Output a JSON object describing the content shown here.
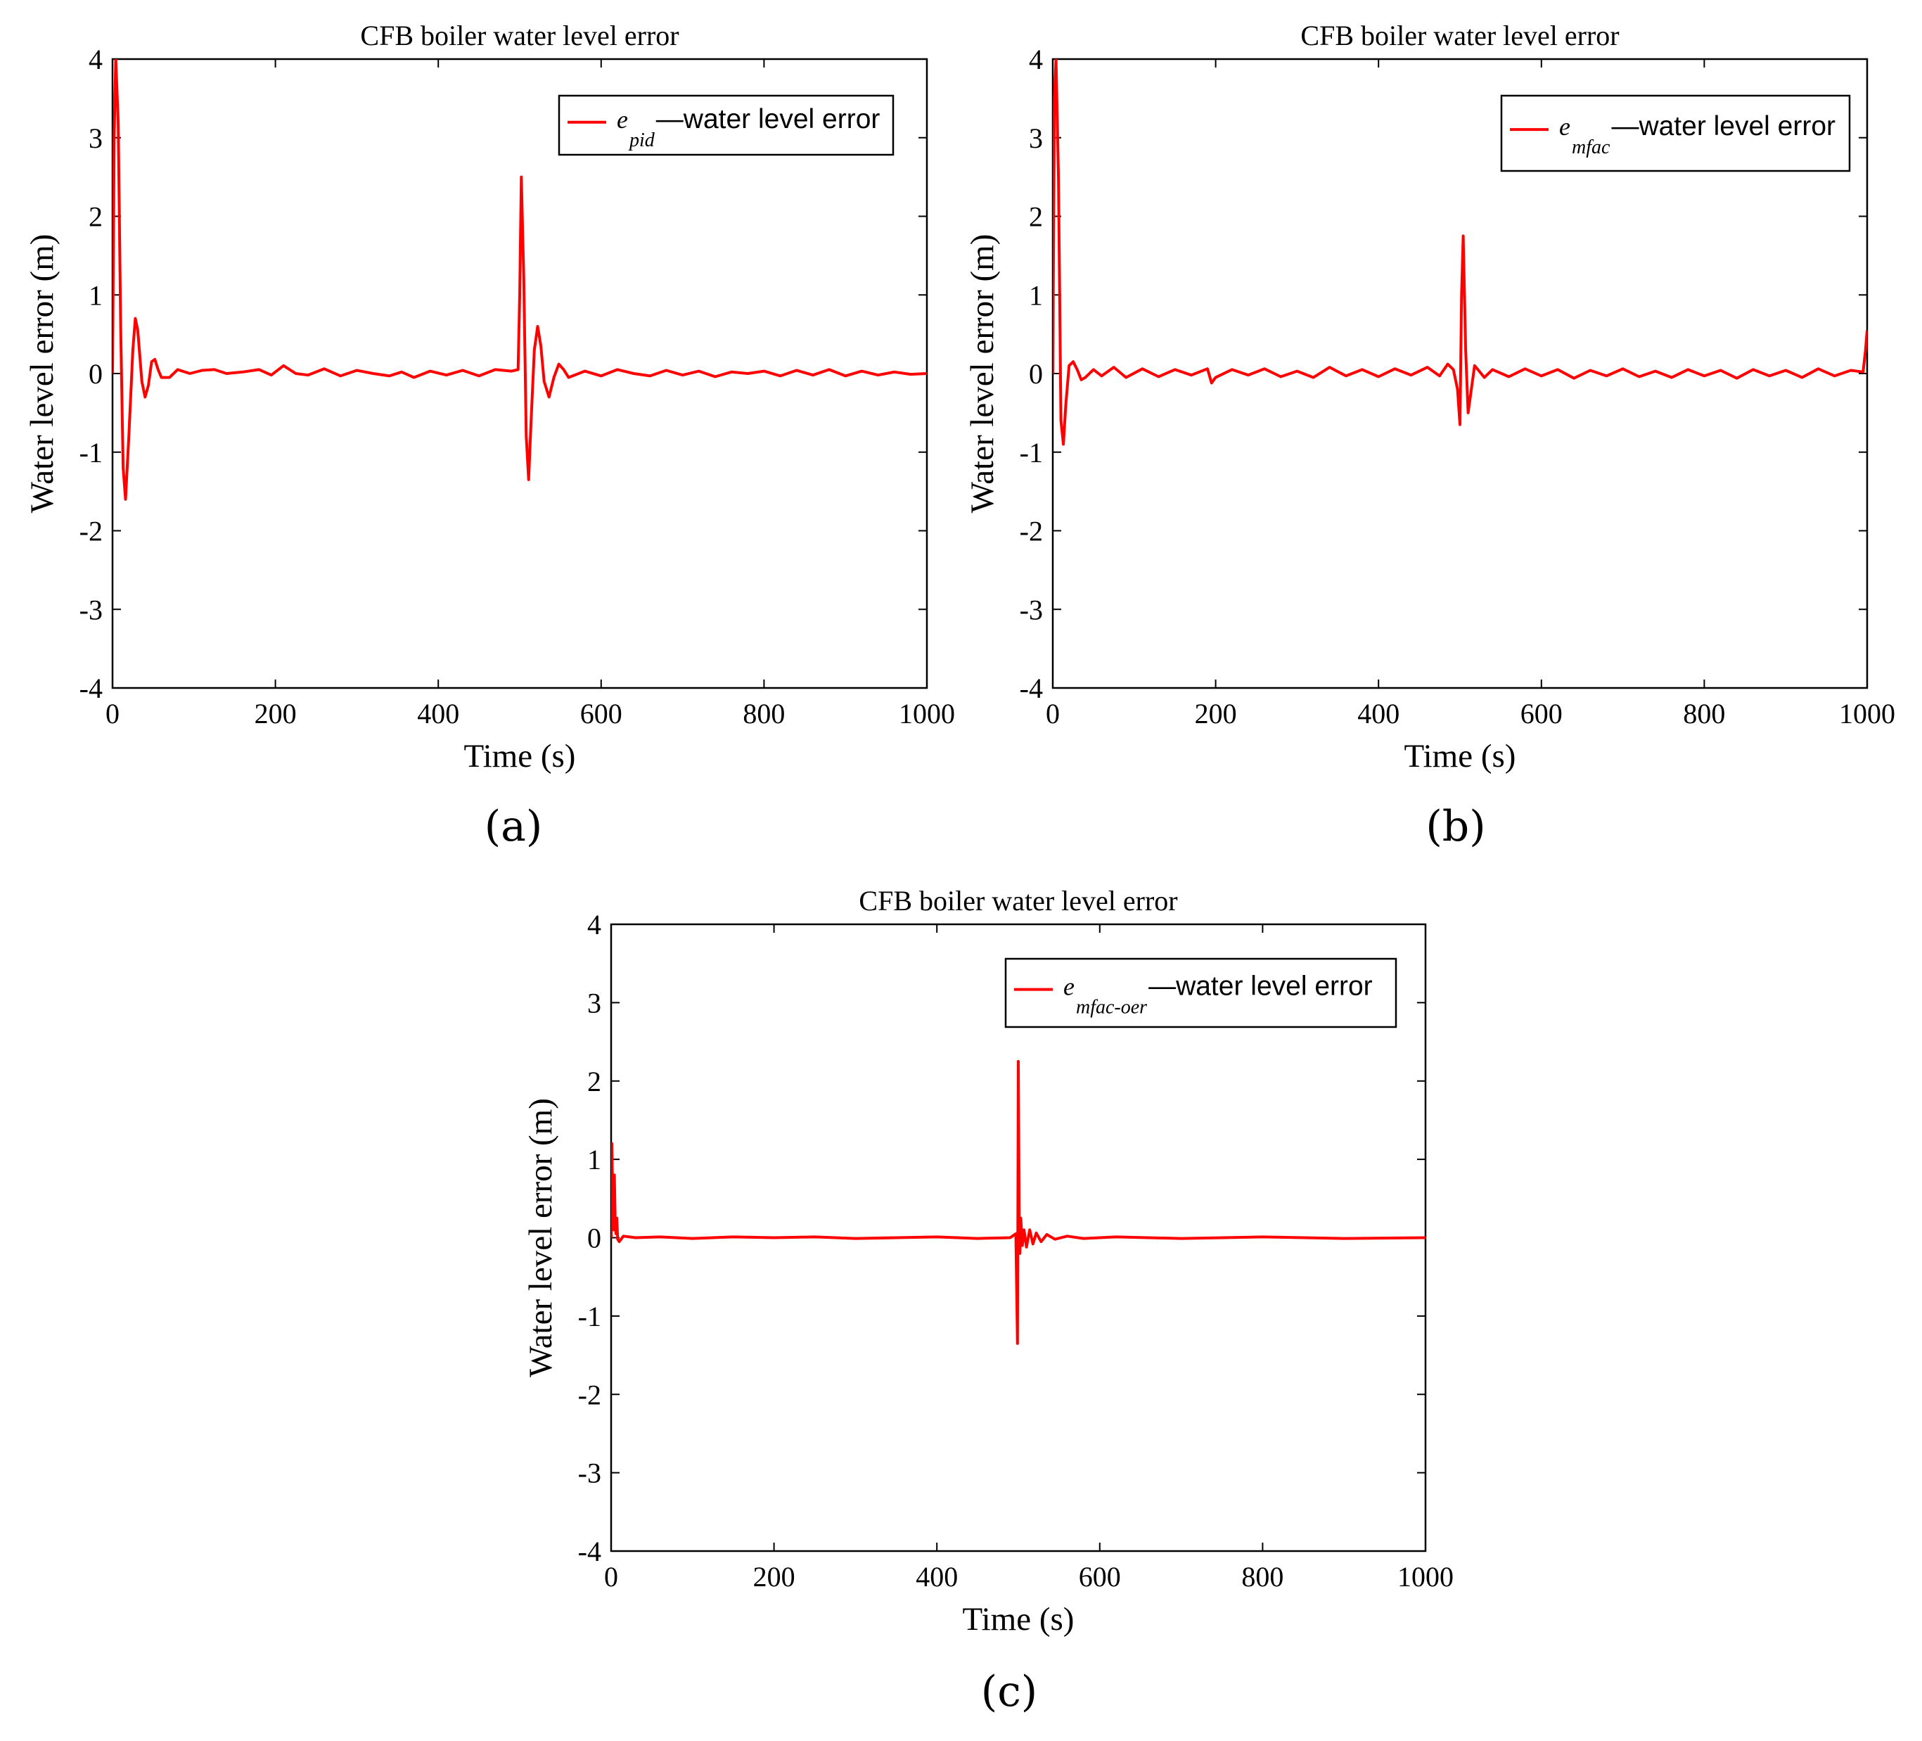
{
  "figure": {
    "panels": [
      "(a)",
      "(b)",
      "(c)"
    ]
  },
  "colors": {
    "series": "#ff0000",
    "axis": "#000000"
  },
  "chart_data": [
    {
      "type": "line",
      "panel_label": "(a)",
      "title": "CFB boiler water level error",
      "xlabel": "Time  (s)",
      "ylabel": "Water level error  (m)",
      "xlim": [
        0,
        1000
      ],
      "ylim": [
        -4,
        4
      ],
      "xticks": [
        0,
        200,
        400,
        600,
        800,
        1000
      ],
      "yticks": [
        4,
        3,
        2,
        1,
        0,
        -1,
        -2,
        -3,
        -4
      ],
      "legend": {
        "symbol": "e",
        "subscript": "pid",
        "label": "—water level error",
        "position": "top-right"
      },
      "series": [
        {
          "name": "e_pid",
          "x": [
            0,
            2,
            4,
            7,
            10,
            13,
            16,
            20,
            25,
            28,
            31,
            36,
            40,
            44,
            48,
            52,
            56,
            60,
            70,
            80,
            95,
            110,
            125,
            140,
            160,
            180,
            195,
            210,
            225,
            240,
            260,
            280,
            300,
            320,
            340,
            355,
            370,
            390,
            410,
            430,
            450,
            470,
            490,
            498,
            500,
            502,
            505,
            508,
            511,
            514,
            518,
            522,
            526,
            530,
            536,
            542,
            548,
            554,
            560,
            580,
            600,
            620,
            640,
            660,
            680,
            700,
            720,
            740,
            760,
            780,
            800,
            820,
            840,
            860,
            880,
            900,
            920,
            940,
            960,
            980,
            1000
          ],
          "y": [
            0,
            3.0,
            4.0,
            3.2,
            0.6,
            -1.2,
            -1.6,
            -0.8,
            0.3,
            0.7,
            0.55,
            -0.1,
            -0.3,
            -0.15,
            0.15,
            0.18,
            0.05,
            -0.05,
            -0.05,
            0.05,
            0.0,
            0.04,
            0.05,
            0.0,
            0.02,
            0.05,
            -0.02,
            0.1,
            0.0,
            -0.02,
            0.06,
            -0.03,
            0.04,
            0.0,
            -0.03,
            0.02,
            -0.05,
            0.03,
            -0.02,
            0.04,
            -0.03,
            0.05,
            0.03,
            0.05,
            1.0,
            2.5,
            1.2,
            -0.8,
            -1.35,
            -0.6,
            0.3,
            0.6,
            0.35,
            -0.1,
            -0.3,
            -0.05,
            0.12,
            0.05,
            -0.05,
            0.03,
            -0.03,
            0.05,
            0.0,
            -0.03,
            0.04,
            -0.02,
            0.03,
            -0.04,
            0.02,
            0.0,
            0.03,
            -0.03,
            0.04,
            -0.02,
            0.05,
            -0.03,
            0.03,
            -0.02,
            0.02,
            -0.01,
            0.0
          ]
        }
      ]
    },
    {
      "type": "line",
      "panel_label": "(b)",
      "title": "CFB boiler water level error",
      "xlabel": "Time  (s)",
      "ylabel": "Water level error  (m)",
      "xlim": [
        0,
        1000
      ],
      "ylim": [
        -4,
        4
      ],
      "xticks": [
        0,
        200,
        400,
        600,
        800,
        1000
      ],
      "yticks": [
        4,
        3,
        2,
        1,
        0,
        -1,
        -2,
        -3,
        -4
      ],
      "legend": {
        "symbol": "e",
        "subscript": "mfac",
        "label": "—water level error",
        "position": "top-right"
      },
      "series": [
        {
          "name": "e_mfac",
          "x": [
            0,
            2,
            4,
            7,
            10,
            13,
            16,
            20,
            25,
            30,
            35,
            40,
            50,
            60,
            75,
            90,
            110,
            130,
            150,
            170,
            190,
            195,
            200,
            220,
            240,
            260,
            280,
            300,
            320,
            340,
            360,
            380,
            400,
            420,
            440,
            460,
            475,
            485,
            492,
            497,
            500,
            502,
            504,
            507,
            510,
            514,
            518,
            522,
            530,
            540,
            560,
            580,
            600,
            620,
            640,
            660,
            680,
            700,
            720,
            740,
            760,
            780,
            800,
            820,
            840,
            860,
            880,
            900,
            920,
            940,
            960,
            980,
            995,
            998,
            1000
          ],
          "y": [
            0,
            3.5,
            4.0,
            2.5,
            -0.6,
            -0.9,
            -0.4,
            0.1,
            0.15,
            0.05,
            -0.08,
            -0.05,
            0.05,
            -0.03,
            0.08,
            -0.05,
            0.06,
            -0.04,
            0.05,
            -0.02,
            0.06,
            -0.12,
            -0.05,
            0.05,
            -0.02,
            0.06,
            -0.04,
            0.03,
            -0.05,
            0.08,
            -0.03,
            0.05,
            -0.04,
            0.06,
            -0.02,
            0.08,
            -0.03,
            0.12,
            0.05,
            -0.2,
            -0.65,
            1.0,
            1.75,
            0.3,
            -0.5,
            -0.2,
            0.1,
            0.05,
            -0.05,
            0.05,
            -0.04,
            0.06,
            -0.03,
            0.05,
            -0.06,
            0.04,
            -0.03,
            0.06,
            -0.04,
            0.03,
            -0.05,
            0.05,
            -0.03,
            0.04,
            -0.06,
            0.05,
            -0.03,
            0.04,
            -0.05,
            0.06,
            -0.03,
            0.04,
            0.02,
            0.3,
            0.55
          ]
        }
      ]
    },
    {
      "type": "line",
      "panel_label": "(c)",
      "title": "CFB boiler water level error",
      "xlabel": "Time  (s)",
      "ylabel": "Water level error  (m)",
      "xlim": [
        0,
        1000
      ],
      "ylim": [
        -4,
        4
      ],
      "xticks": [
        0,
        200,
        400,
        600,
        800,
        1000
      ],
      "yticks": [
        4,
        3,
        2,
        1,
        0,
        -1,
        -2,
        -3,
        -4
      ],
      "legend": {
        "symbol": "e",
        "subscript": "mfac-oer",
        "label": "—water level error",
        "position": "top-right"
      },
      "series": [
        {
          "name": "e_mfac-oer",
          "x": [
            0,
            1,
            2,
            3,
            4,
            5,
            6,
            7,
            8,
            10,
            15,
            30,
            60,
            100,
            150,
            200,
            250,
            300,
            350,
            400,
            450,
            490,
            497,
            499,
            500,
            501,
            502,
            503,
            505,
            507,
            510,
            514,
            518,
            522,
            528,
            535,
            545,
            560,
            580,
            620,
            700,
            800,
            900,
            1000
          ],
          "y": [
            0,
            1.2,
            0.3,
            0.1,
            0.8,
            0.2,
            0.05,
            0.25,
            -0.02,
            -0.05,
            0.02,
            0.0,
            0.01,
            -0.01,
            0.01,
            0.0,
            0.01,
            -0.01,
            0.0,
            0.01,
            -0.01,
            0.0,
            0.05,
            -1.35,
            2.25,
            0.3,
            -0.2,
            0.25,
            -0.1,
            0.1,
            -0.12,
            0.1,
            -0.08,
            0.06,
            -0.05,
            0.04,
            -0.02,
            0.02,
            -0.01,
            0.01,
            -0.01,
            0.01,
            -0.01,
            0.0
          ]
        }
      ]
    }
  ]
}
